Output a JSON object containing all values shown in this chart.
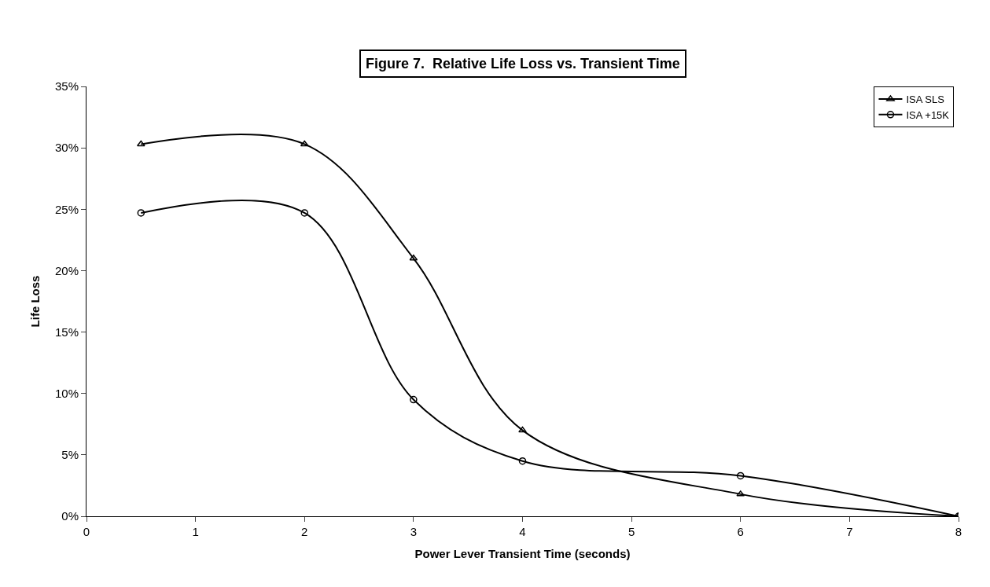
{
  "chart_data": {
    "type": "line",
    "title": "Figure 7.  Relative Life Loss vs. Transient Time",
    "xlabel": "Power Lever Transient Time (seconds)",
    "ylabel": "Life Loss",
    "x": [
      0.5,
      2,
      3,
      4,
      6,
      8
    ],
    "series": [
      {
        "name": "ISA SLS",
        "color": "#000000",
        "marker": "triangle",
        "values": [
          30.3,
          30.3,
          21.0,
          7.0,
          1.8,
          0
        ]
      },
      {
        "name": "ISA +15K",
        "color": "#000000",
        "marker": "circle",
        "values": [
          24.7,
          24.7,
          9.5,
          4.5,
          3.3,
          0
        ]
      }
    ],
    "xlim": [
      0,
      8
    ],
    "xticks": [
      0,
      1,
      2,
      3,
      4,
      5,
      6,
      7,
      8
    ],
    "ylim": [
      0,
      35
    ],
    "yticks": [
      {
        "value": 0,
        "label": "0%"
      },
      {
        "value": 5,
        "label": "5%"
      },
      {
        "value": 10,
        "label": "10%"
      },
      {
        "value": 15,
        "label": "15%"
      },
      {
        "value": 20,
        "label": "20%"
      },
      {
        "value": 25,
        "label": "25%"
      },
      {
        "value": 30,
        "label": "30%"
      },
      {
        "value": 35,
        "label": "35%"
      }
    ],
    "line_style": "solid",
    "grid": false,
    "legend": "top right"
  }
}
